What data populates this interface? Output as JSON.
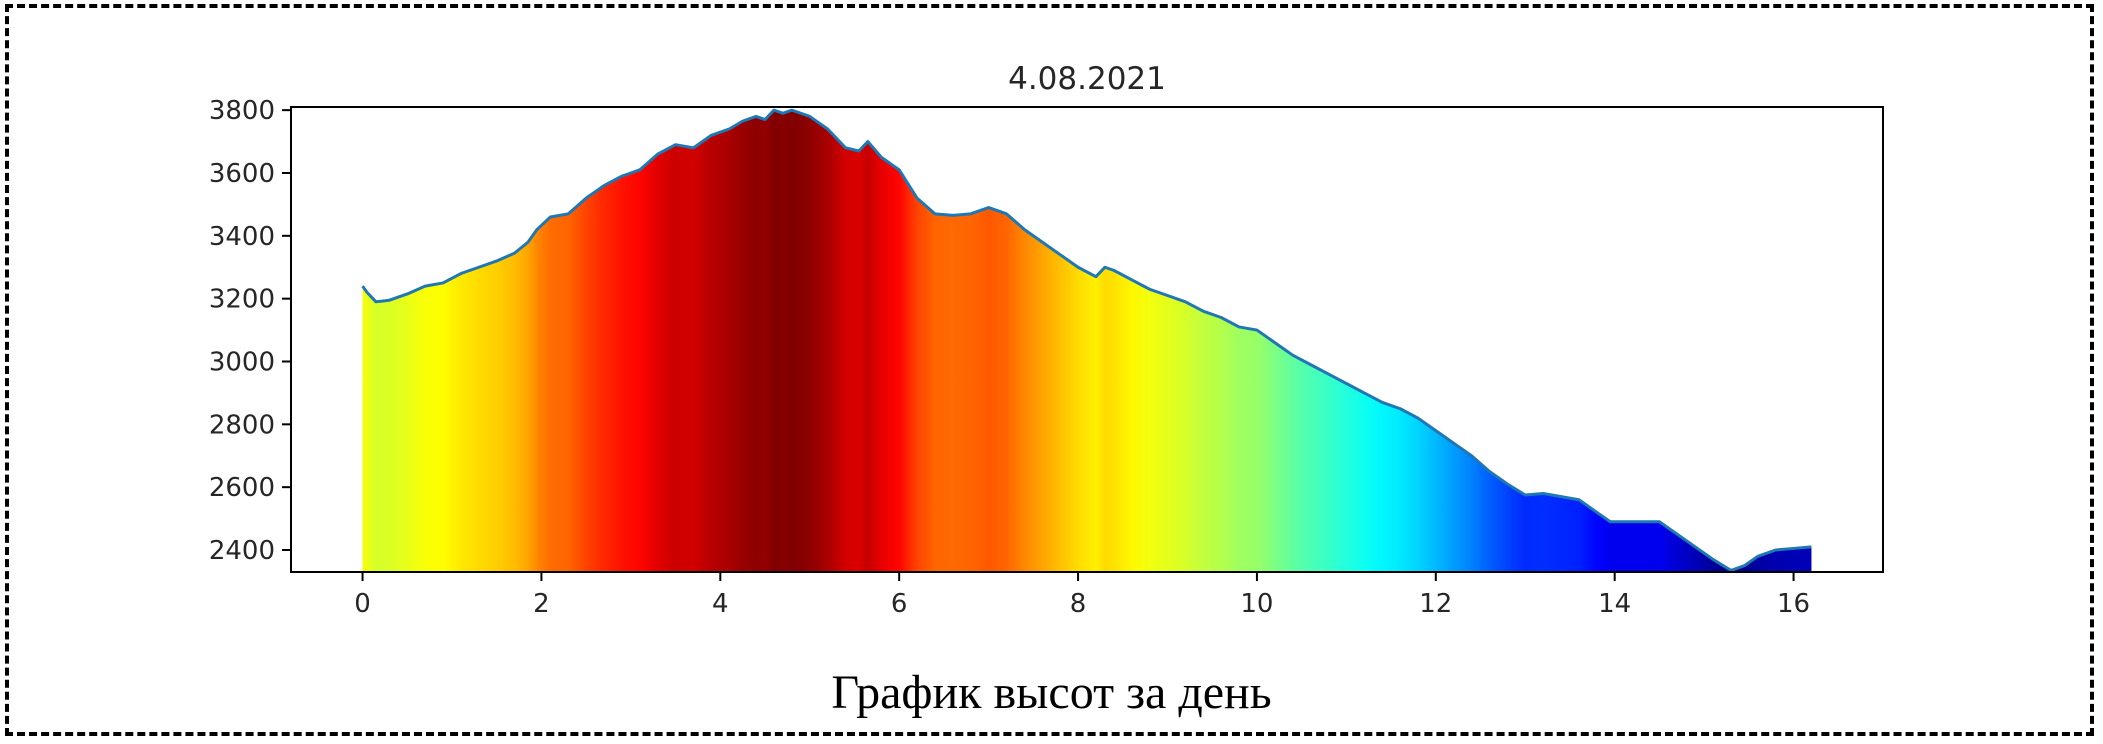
{
  "caption": "График высот за день",
  "chart_data": {
    "type": "area",
    "title": "4.08.2021",
    "xlabel": "",
    "ylabel": "",
    "xlim": [
      -0.8,
      17.0
    ],
    "ylim": [
      2330,
      3810
    ],
    "xticks": [
      0,
      2,
      4,
      6,
      8,
      10,
      12,
      14,
      16
    ],
    "yticks": [
      2400,
      2600,
      2800,
      3000,
      3200,
      3400,
      3600,
      3800
    ],
    "grid": false,
    "line_color": "#1f77b4",
    "fill_colormap": "jet",
    "fill_colorscale_range": [
      2330,
      3800
    ],
    "x": [
      0,
      0.05,
      0.15,
      0.3,
      0.5,
      0.7,
      0.9,
      1.1,
      1.3,
      1.5,
      1.7,
      1.85,
      1.95,
      2.1,
      2.3,
      2.5,
      2.7,
      2.9,
      3.1,
      3.3,
      3.5,
      3.7,
      3.9,
      4.1,
      4.25,
      4.4,
      4.5,
      4.6,
      4.7,
      4.8,
      5.0,
      5.2,
      5.4,
      5.55,
      5.65,
      5.8,
      6.0,
      6.2,
      6.4,
      6.6,
      6.8,
      7.0,
      7.2,
      7.4,
      7.6,
      7.8,
      8.0,
      8.2,
      8.3,
      8.4,
      8.6,
      8.8,
      9.0,
      9.2,
      9.4,
      9.6,
      9.8,
      10.0,
      10.2,
      10.4,
      10.6,
      10.8,
      11.0,
      11.2,
      11.4,
      11.6,
      11.8,
      12.0,
      12.2,
      12.4,
      12.6,
      12.8,
      13.0,
      13.2,
      13.4,
      13.6,
      13.8,
      13.95,
      14.2,
      14.5,
      14.8,
      15.1,
      15.3,
      15.45,
      15.6,
      15.8,
      16.0,
      16.2
    ],
    "y": [
      3240,
      3220,
      3190,
      3195,
      3215,
      3240,
      3250,
      3280,
      3300,
      3320,
      3345,
      3380,
      3420,
      3460,
      3470,
      3520,
      3560,
      3590,
      3610,
      3660,
      3690,
      3680,
      3720,
      3740,
      3765,
      3780,
      3770,
      3800,
      3790,
      3800,
      3780,
      3740,
      3680,
      3670,
      3700,
      3650,
      3610,
      3520,
      3470,
      3465,
      3470,
      3490,
      3470,
      3420,
      3380,
      3340,
      3300,
      3270,
      3300,
      3290,
      3260,
      3230,
      3210,
      3190,
      3160,
      3140,
      3110,
      3100,
      3060,
      3020,
      2990,
      2960,
      2930,
      2900,
      2870,
      2850,
      2820,
      2780,
      2740,
      2700,
      2650,
      2610,
      2575,
      2580,
      2570,
      2560,
      2520,
      2490,
      2490,
      2490,
      2430,
      2370,
      2335,
      2350,
      2380,
      2400,
      2405,
      2410
    ]
  }
}
